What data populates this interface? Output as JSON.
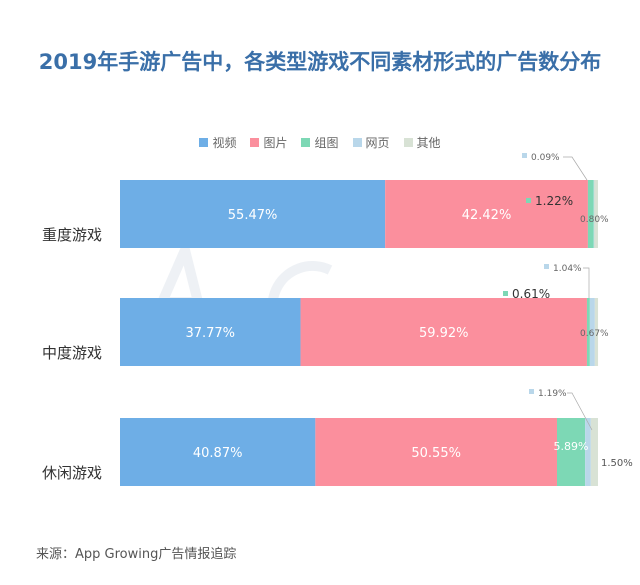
{
  "title": "2019年手游广告中，各类型游戏不同素材形式的广告数分布",
  "source": "来源：App Growing广告情报追踪",
  "watermark": "App Growing",
  "chart_data": {
    "type": "bar",
    "orientation": "horizontal-stacked-100",
    "title": "2019年手游广告中，各类型游戏不同素材形式的广告数分布",
    "legend_position": "top",
    "categories": [
      "重度游戏",
      "中度游戏",
      "休闲游戏"
    ],
    "series": [
      {
        "name": "视频",
        "color": "#6eaee6",
        "values": [
          55.47,
          37.77,
          40.87
        ]
      },
      {
        "name": "图片",
        "color": "#fb8f9d",
        "values": [
          42.42,
          59.92,
          50.55
        ]
      },
      {
        "name": "组图",
        "color": "#7dd8b5",
        "values": [
          1.22,
          0.61,
          5.89
        ]
      },
      {
        "name": "网页",
        "color": "#b9d7ea",
        "values": [
          0.09,
          1.04,
          1.19
        ]
      },
      {
        "name": "其他",
        "color": "#d8e2d5",
        "values": [
          0.8,
          0.67,
          1.5
        ]
      }
    ],
    "labels": [
      [
        "55.47%",
        "42.42%",
        "1.22%",
        "0.09%",
        "0.80%"
      ],
      [
        "37.77%",
        "59.92%",
        "0.61%",
        "1.04%",
        "0.67%"
      ],
      [
        "40.87%",
        "50.55%",
        "5.89%",
        "1.19%",
        "1.50%"
      ]
    ],
    "xlim": [
      0,
      100
    ],
    "grid": false
  }
}
